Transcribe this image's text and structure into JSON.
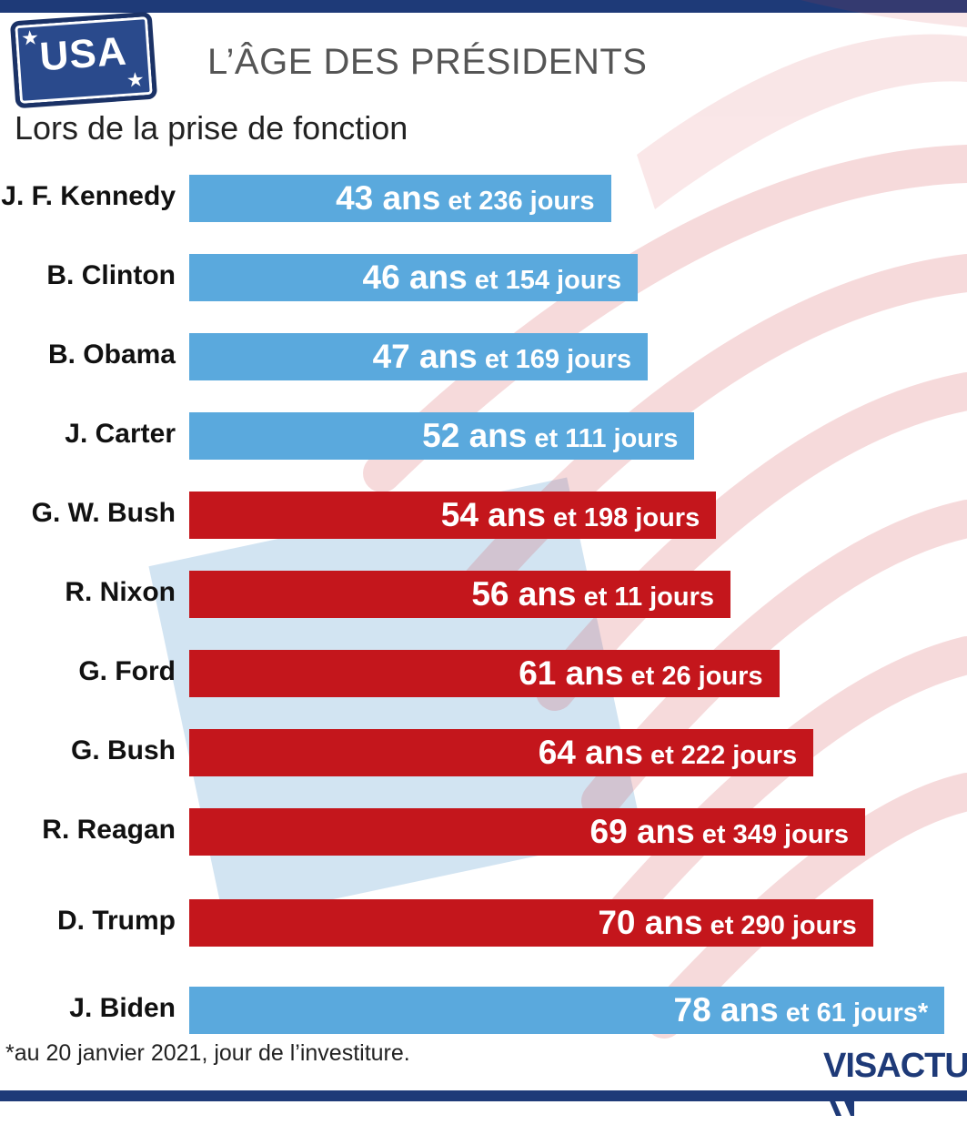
{
  "header": {
    "badge": "USA",
    "title": "L’ÂGE DES PRÉSIDENTS",
    "subtitle": "Lors de la prise de fonction"
  },
  "chart_data": {
    "type": "bar",
    "orientation": "horizontal",
    "categories": [
      "J. F. Kennedy",
      "B. Clinton",
      "B. Obama",
      "J. Carter",
      "G. W. Bush",
      "R. Nixon",
      "G. Ford",
      "G. Bush",
      "R. Reagan",
      "D. Trump",
      "J. Biden"
    ],
    "values": [
      43.65,
      46.42,
      47.46,
      52.3,
      54.54,
      56.03,
      61.07,
      64.61,
      69.96,
      70.79,
      78.17
    ],
    "bars": [
      {
        "name": "J. F. Kennedy",
        "years": "43 ans",
        "days": "et 236 jours",
        "party": "dem"
      },
      {
        "name": "B. Clinton",
        "years": "46 ans",
        "days": "et 154 jours",
        "party": "dem"
      },
      {
        "name": "B. Obama",
        "years": "47 ans",
        "days": "et 169 jours",
        "party": "dem"
      },
      {
        "name": "J. Carter",
        "years": "52 ans",
        "days": "et 111 jours",
        "party": "dem"
      },
      {
        "name": "G. W. Bush",
        "years": "54 ans",
        "days": "et 198 jours",
        "party": "rep"
      },
      {
        "name": "R. Nixon",
        "years": "56 ans",
        "days": "et 11 jours",
        "party": "rep"
      },
      {
        "name": "G. Ford",
        "years": "61 ans",
        "days": "et 26 jours",
        "party": "rep"
      },
      {
        "name": "G. Bush",
        "years": "64 ans",
        "days": "et 222 jours",
        "party": "rep"
      },
      {
        "name": "R. Reagan",
        "years": "69 ans",
        "days": "et 349 jours",
        "party": "rep"
      },
      {
        "name": "D. Trump",
        "years": "70 ans",
        "days": "et 290 jours",
        "party": "rep"
      },
      {
        "name": "J. Biden",
        "years": "78 ans",
        "days": "et 61 jours*",
        "party": "dem"
      }
    ],
    "colors": {
      "dem": "#5aa9dd",
      "rep": "#c4161c"
    }
  },
  "footnote": "*au 20 janvier 2021, jour de l’investiture.",
  "logo": {
    "part1": "VIS",
    "part2": "ACTU"
  },
  "colors": {
    "brand": "#1e3a78"
  }
}
